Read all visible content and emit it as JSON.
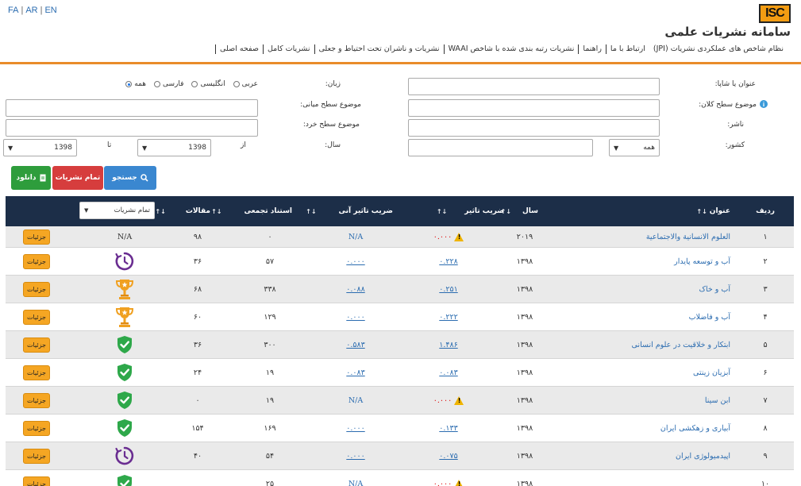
{
  "header": {
    "lang": [
      "FA",
      "AR",
      "EN"
    ],
    "logo_text": "ISC",
    "site_title": "سامانه نشریات علمی",
    "nav": [
      "صفحه اصلی",
      "نشریات کامل",
      "نشریات و ناشران تحت احتیاط و جعلی",
      "نشریات رتبه بندی شده با شاخص WAAI",
      "راهنما",
      "ارتباط با ما",
      "نظام شاخص های عملکردی نشریات (JPI)"
    ]
  },
  "form": {
    "title_label": "عنوان یا شاپا:",
    "title_value": "",
    "lang_label": "زبان:",
    "lang_options": [
      "همه",
      "فارسی",
      "انگلیسی",
      "عربی"
    ],
    "lang_selected": "همه",
    "major_subject_label": "موضوع سطح کلان:",
    "major_subject_value": "",
    "mid_subject_label": "موضوع سطح میانی:",
    "mid_subject_value": "",
    "publisher_label": "ناشر:",
    "publisher_value": "",
    "minor_subject_label": "موضوع سطح خرد:",
    "minor_subject_value": "",
    "country_label": "کشور:",
    "country_value": "همه",
    "year_label": "سال:",
    "from_label": "از",
    "from_value": "1398",
    "to_label": "تا",
    "to_value": "1398",
    "search_btn": "جستجو",
    "all_btn": "تمام نشریات",
    "download_btn": "دانلود"
  },
  "table": {
    "headers": {
      "idx": "ردیف",
      "title": "عنوان",
      "year": "سال",
      "if": "ضریب تاثیر",
      "ifi": "ضریب تاثیر آنی",
      "citations": "استناد تجمعی",
      "articles": "مقالات",
      "filter": "تمام نشریات"
    },
    "rows": [
      {
        "idx": "۱",
        "title": "العلوم الانسانیة والاجتماعیة",
        "year": "۲۰۱۹",
        "if": "۰.۰۰۰",
        "if_warn": true,
        "ifi": "N/A",
        "ifi_link": false,
        "cit": "۰",
        "art": "۹۸",
        "status": "N/A",
        "details": "جزئیات"
      },
      {
        "idx": "۲",
        "title": "آب و توسعه پایدار",
        "year": "۱۳۹۸",
        "if": "۰.۲۲۸",
        "if_warn": false,
        "ifi": "۰.۰۰۰",
        "ifi_link": true,
        "cit": "۵۷",
        "art": "۳۶",
        "status": "clock",
        "details": "جزئیات"
      },
      {
        "idx": "۳",
        "title": "آب و خاک",
        "year": "۱۳۹۸",
        "if": "۰.۲۵۱",
        "if_warn": false,
        "ifi": "۰.۰۸۸",
        "ifi_link": true,
        "cit": "۳۳۸",
        "art": "۶۸",
        "status": "trophy",
        "details": "جزئیات"
      },
      {
        "idx": "۴",
        "title": "آب و فاضلاب",
        "year": "۱۳۹۸",
        "if": "۰.۲۲۲",
        "if_warn": false,
        "ifi": "۰.۰۰۰",
        "ifi_link": true,
        "cit": "۱۲۹",
        "art": "۶۰",
        "status": "trophy",
        "details": "جزئیات"
      },
      {
        "idx": "۵",
        "title": "ابتکار و خلاقیت در علوم انسانی",
        "year": "۱۳۹۸",
        "if": "۱.۴۸۶",
        "if_warn": false,
        "ifi": "۰.۵۸۳",
        "ifi_link": true,
        "cit": "۳۰۰",
        "art": "۳۶",
        "status": "shield",
        "details": "جزئیات"
      },
      {
        "idx": "۶",
        "title": "آبزیان زینتی",
        "year": "۱۳۹۸",
        "if": "۰.۰۸۳",
        "if_warn": false,
        "ifi": "۰.۰۸۳",
        "ifi_link": true,
        "cit": "۱۹",
        "art": "۲۴",
        "status": "shield",
        "details": "جزئیات"
      },
      {
        "idx": "۷",
        "title": "ابن سینا",
        "year": "۱۳۹۸",
        "if": "۰.۰۰۰",
        "if_warn": true,
        "ifi": "N/A",
        "ifi_link": false,
        "cit": "۱۹",
        "art": "۰",
        "status": "shield",
        "details": "جزئیات"
      },
      {
        "idx": "۸",
        "title": "آبیاری و زهکشی ایران",
        "year": "۱۳۹۸",
        "if": "۰.۱۳۳",
        "if_warn": false,
        "ifi": "۰.۰۰۰",
        "ifi_link": true,
        "cit": "۱۶۹",
        "art": "۱۵۴",
        "status": "shield",
        "details": "جزئیات"
      },
      {
        "idx": "۹",
        "title": "اپیدمیولوژی ایران",
        "year": "۱۳۹۸",
        "if": "۰.۰۷۵",
        "if_warn": false,
        "ifi": "۰.۰۰۰",
        "ifi_link": true,
        "cit": "۵۴",
        "art": "۴۰",
        "status": "clock",
        "details": "جزئیات"
      },
      {
        "idx": "۱۰",
        "title": "",
        "year": "۱۳۹۸",
        "if": "۰.۰۰۰",
        "if_warn": true,
        "ifi": "N/A",
        "ifi_link": false,
        "cit": "۲۵",
        "art": "",
        "status": "shield",
        "details": "جزئیات"
      }
    ]
  },
  "colors": {
    "accent_orange": "#e98c2a",
    "header_navy": "#1c2e48",
    "link_blue": "#2b6cb0",
    "btn_blue": "#3a87d0",
    "btn_red": "#d63d3d",
    "btn_green": "#2e9d3c",
    "status_green": "#2ea84a",
    "status_purple": "#6a2d91",
    "trophy_orange": "#f0a020"
  },
  "icons": {
    "search": "search-icon",
    "download": "file-icon",
    "info": "info-icon",
    "warn": "warning-icon",
    "trophy": "trophy-icon",
    "shield": "shield-check-icon",
    "clock": "clock-icon"
  }
}
